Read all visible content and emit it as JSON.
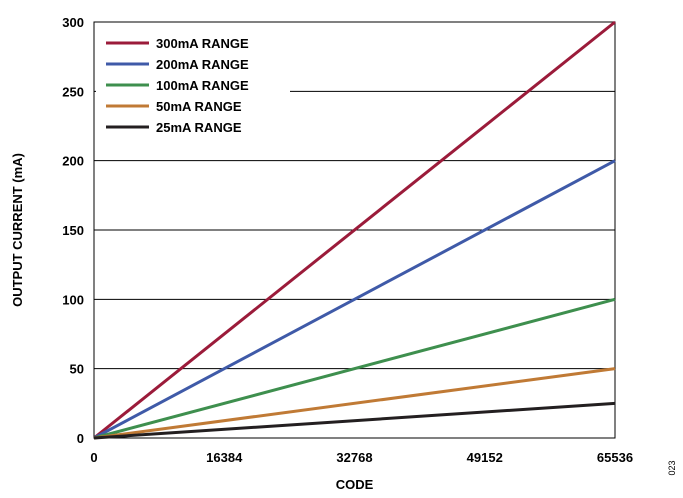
{
  "chart_data": {
    "type": "line",
    "title": "",
    "xlabel": "CODE",
    "ylabel": "OUTPUT CURRENT (mA)",
    "xlim": [
      0,
      65536
    ],
    "ylim": [
      0,
      300
    ],
    "x_ticks": [
      0,
      16384,
      32768,
      49152,
      65536
    ],
    "x_tick_labels": [
      "0",
      "16384",
      "32768",
      "49152",
      "65536"
    ],
    "y_ticks": [
      0,
      50,
      100,
      150,
      200,
      250,
      300
    ],
    "y_tick_labels": [
      "0",
      "50",
      "100",
      "150",
      "200",
      "250",
      "300"
    ],
    "grid": "horizontal",
    "legend_position": "top-left",
    "series": [
      {
        "name": "300mA RANGE",
        "color": "#9b1b3a",
        "x": [
          0,
          65536
        ],
        "y": [
          0,
          300
        ]
      },
      {
        "name": "200mA RANGE",
        "color": "#3f5aa8",
        "x": [
          0,
          65536
        ],
        "y": [
          0,
          200
        ]
      },
      {
        "name": "100mA RANGE",
        "color": "#3e8f4e",
        "x": [
          0,
          65536
        ],
        "y": [
          0,
          100
        ]
      },
      {
        "name": "50mA RANGE",
        "color": "#c07a35",
        "x": [
          0,
          65536
        ],
        "y": [
          0,
          50
        ]
      },
      {
        "name": "25mA RANGE",
        "color": "#231f20",
        "x": [
          0,
          65536
        ],
        "y": [
          0,
          25
        ]
      }
    ]
  },
  "figure_id": "023"
}
